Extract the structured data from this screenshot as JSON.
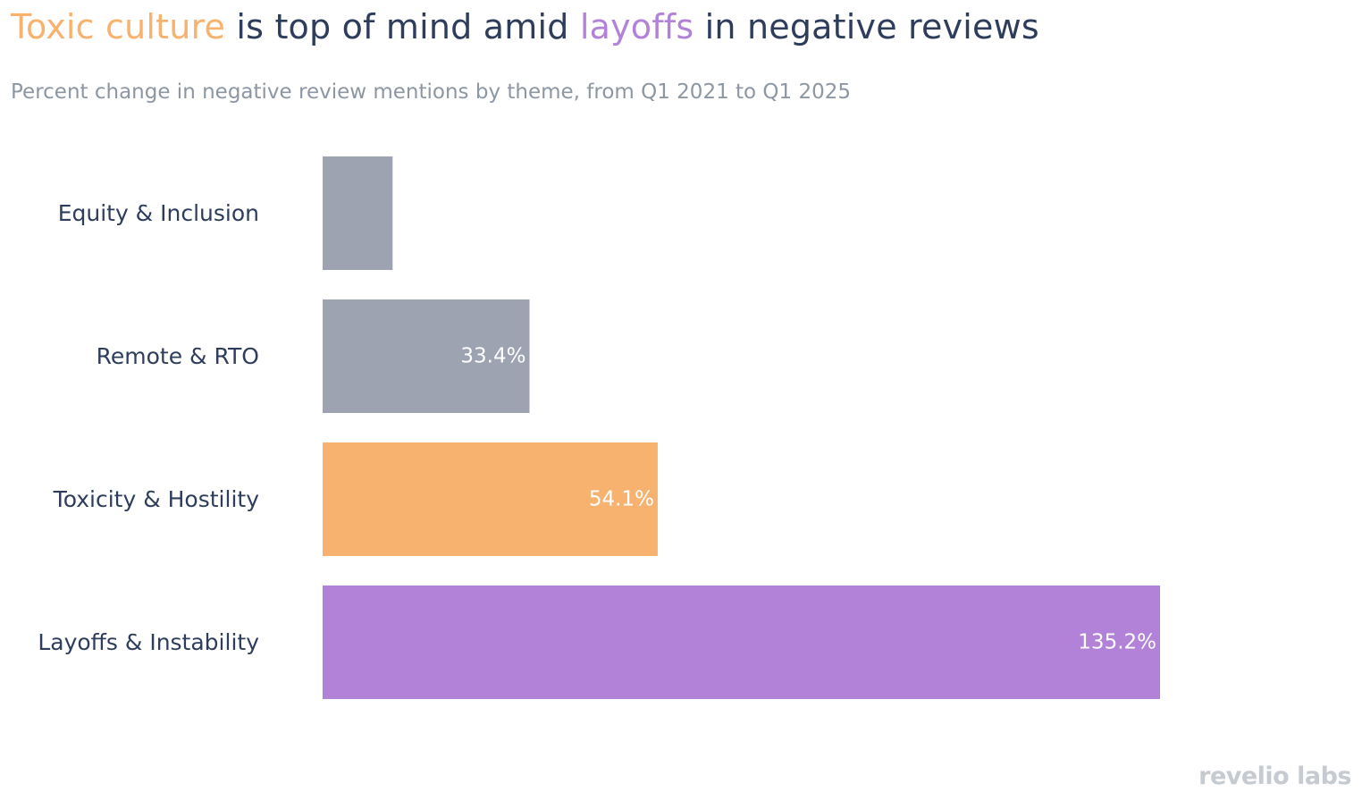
{
  "title": {
    "part1_highlight": "Toxic culture",
    "part2": " is top of mind amid ",
    "part3_highlight": "layoffs",
    "part4": " in negative reviews"
  },
  "subtitle": "Percent change in negative review mentions by theme, from Q1 2021 to Q1 2025",
  "logo": "revelio labs",
  "colors": {
    "orange": "#f8b26f",
    "purple": "#b282d8",
    "gray": "#9ea3b2",
    "text": "#2e3d5c",
    "subtitle": "#8c97a3"
  },
  "chart_data": {
    "type": "bar",
    "orientation": "horizontal",
    "title": "Toxic culture is top of mind amid layoffs in negative reviews",
    "subtitle": "Percent change in negative review mentions by theme, from Q1 2021 to Q1 2025",
    "xlabel": "",
    "ylabel": "",
    "grid": false,
    "xlim": [
      0,
      135.2
    ],
    "categories": [
      "Equity & Inclusion",
      "Remote & RTO",
      "Toxicity & Hostility",
      "Layoffs & Instability"
    ],
    "values": [
      11.3,
      33.4,
      54.1,
      135.2
    ],
    "labels": [
      "",
      "33.4%",
      "54.1%",
      "135.2%"
    ],
    "colors": [
      "#9ea3b2",
      "#9ea3b2",
      "#f8b26f",
      "#b282d8"
    ]
  }
}
